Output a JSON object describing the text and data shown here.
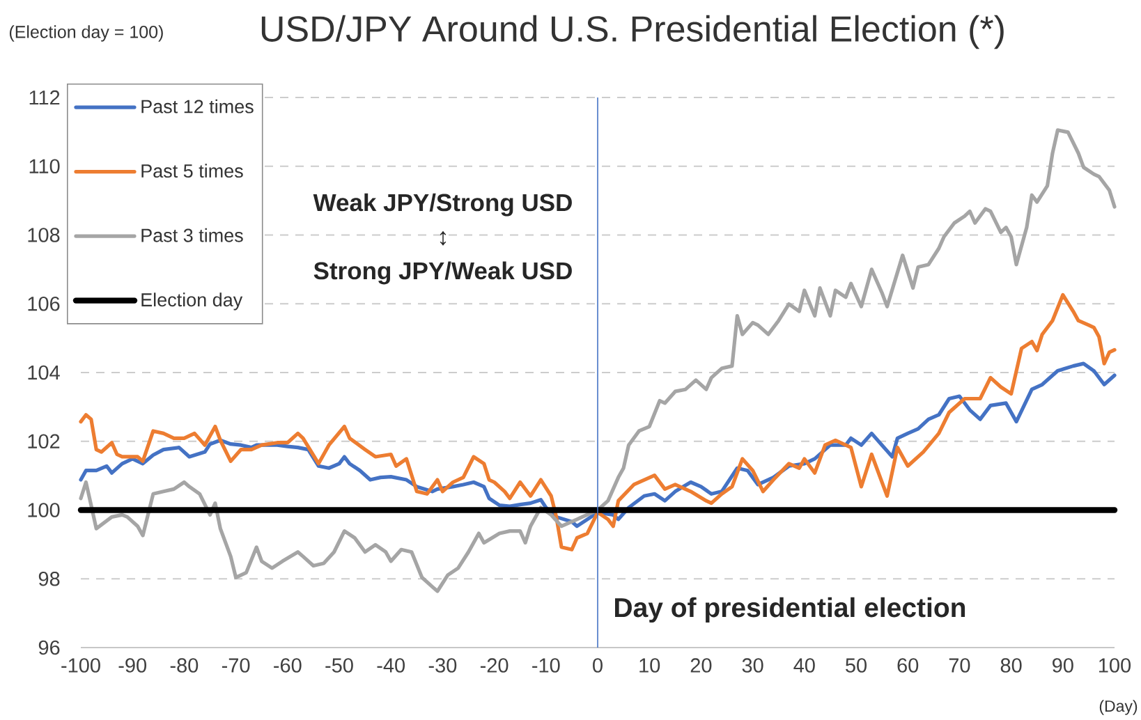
{
  "chart_data": {
    "type": "line",
    "title": "USD/JPY Around U.S. Presidential Election (*)",
    "ylabel": "(Election day = 100)",
    "xlabel": "(Day)",
    "xlim": [
      -100,
      100
    ],
    "xticks": [
      -100,
      -90,
      -80,
      -70,
      -60,
      -50,
      -40,
      -30,
      -20,
      -10,
      0,
      10,
      20,
      30,
      40,
      50,
      60,
      70,
      80,
      90,
      100
    ],
    "ylim": [
      96,
      112
    ],
    "yticks": [
      96,
      98,
      100,
      102,
      104,
      106,
      108,
      110,
      112
    ],
    "grid": "y",
    "legend": "top left",
    "annotations": [
      "Weak JPY/Strong USD",
      "↕",
      "Strong JPY/Weak USD"
    ],
    "ref_lines": [
      {
        "axis": "x",
        "value": 0,
        "label": "Day of presidential election",
        "color": "#4472c4"
      }
    ],
    "series": [
      {
        "name": "Past 12 times",
        "color": "#4472c4",
        "x": [
          -100,
          -99,
          -97,
          -95,
          -94,
          -92,
          -90,
          -88,
          -86,
          -84,
          -81,
          -79,
          -76,
          -75,
          -73,
          -71,
          -69,
          -67,
          -66,
          -62,
          -60,
          -58,
          -56,
          -54,
          -52,
          -50,
          -49,
          -48,
          -46,
          -44,
          -42,
          -40,
          -37,
          -35,
          -32,
          -31,
          -28,
          -26,
          -24,
          -22,
          -21,
          -19,
          -17,
          -15,
          -13,
          -11,
          -10,
          -8,
          -5,
          -4,
          -2,
          0,
          3,
          4,
          6,
          9,
          11,
          13,
          15,
          18,
          20,
          22,
          24,
          27,
          29,
          31,
          34,
          37,
          40,
          42,
          45,
          48,
          49,
          51,
          53,
          55,
          57,
          58,
          60,
          62,
          64,
          66,
          68,
          70,
          72,
          74,
          76,
          79,
          81,
          84,
          86,
          89,
          92,
          94,
          96,
          98,
          100
        ],
        "values": [
          100.88,
          101.15,
          101.15,
          101.28,
          101.08,
          101.35,
          101.49,
          101.35,
          101.6,
          101.76,
          101.82,
          101.55,
          101.69,
          101.92,
          102.03,
          101.92,
          101.89,
          101.82,
          101.89,
          101.89,
          101.85,
          101.82,
          101.76,
          101.28,
          101.22,
          101.35,
          101.55,
          101.35,
          101.15,
          100.88,
          100.95,
          100.97,
          100.88,
          100.68,
          100.54,
          100.61,
          100.68,
          100.74,
          100.81,
          100.68,
          100.34,
          100.14,
          100.11,
          100.16,
          100.2,
          100.3,
          100.07,
          99.8,
          99.66,
          99.53,
          99.73,
          99.93,
          99.86,
          99.73,
          100.07,
          100.41,
          100.47,
          100.27,
          100.54,
          100.81,
          100.68,
          100.47,
          100.54,
          101.22,
          101.15,
          100.74,
          100.95,
          101.28,
          101.35,
          101.49,
          101.89,
          101.89,
          102.09,
          101.89,
          102.23,
          101.89,
          101.55,
          102.09,
          102.23,
          102.36,
          102.64,
          102.77,
          103.24,
          103.31,
          102.91,
          102.64,
          103.04,
          103.11,
          102.57,
          103.51,
          103.65,
          104.05,
          104.19,
          104.26,
          104.05,
          103.65,
          103.92
        ]
      },
      {
        "name": "Past 5 times",
        "color": "#ed7d31",
        "x": [
          -100,
          -99,
          -98,
          -97,
          -96,
          -94,
          -93,
          -92,
          -89,
          -88,
          -86,
          -84,
          -82,
          -80,
          -78,
          -76,
          -74,
          -73,
          -71,
          -69,
          -67,
          -65,
          -62,
          -60,
          -58,
          -57,
          -54,
          -52,
          -49,
          -48,
          -45,
          -43,
          -40,
          -39,
          -37,
          -35,
          -33,
          -31,
          -30,
          -28,
          -26,
          -24,
          -22,
          -21,
          -20,
          -18,
          -17,
          -15,
          -13,
          -11,
          -9,
          -8,
          -7,
          -5,
          -4,
          -2,
          0,
          2,
          3,
          4,
          7,
          11,
          13,
          15,
          18,
          21,
          22,
          24,
          26,
          28,
          30,
          32,
          34,
          37,
          39,
          40,
          42,
          44,
          46,
          49,
          51,
          53,
          56,
          58,
          60,
          63,
          66,
          68,
          71,
          74,
          76,
          78,
          80,
          82,
          84,
          85,
          86,
          88,
          90,
          92,
          93,
          95,
          96,
          97,
          98,
          99,
          100
        ],
        "values": [
          102.57,
          102.77,
          102.64,
          101.76,
          101.69,
          101.96,
          101.62,
          101.55,
          101.55,
          101.42,
          102.3,
          102.23,
          102.09,
          102.09,
          102.23,
          101.89,
          102.43,
          102.03,
          101.42,
          101.76,
          101.76,
          101.89,
          101.96,
          101.96,
          102.23,
          102.09,
          101.35,
          101.89,
          102.43,
          102.09,
          101.76,
          101.55,
          101.62,
          101.28,
          101.49,
          100.54,
          100.47,
          100.88,
          100.54,
          100.81,
          100.95,
          101.55,
          101.35,
          100.88,
          100.81,
          100.54,
          100.34,
          100.81,
          100.41,
          100.88,
          100.41,
          99.8,
          98.92,
          98.85,
          99.19,
          99.32,
          99.93,
          99.73,
          99.53,
          100.27,
          100.74,
          101.01,
          100.61,
          100.74,
          100.54,
          100.27,
          100.2,
          100.47,
          100.68,
          101.49,
          101.15,
          100.54,
          100.88,
          101.35,
          101.22,
          101.49,
          101.08,
          101.89,
          102.03,
          101.82,
          100.68,
          101.62,
          100.41,
          101.82,
          101.28,
          101.69,
          102.23,
          102.84,
          103.24,
          103.24,
          103.85,
          103.58,
          103.38,
          104.7,
          104.9,
          104.64,
          105.11,
          105.51,
          106.26,
          105.78,
          105.51,
          105.38,
          105.31,
          105.04,
          104.26,
          104.59,
          104.66
        ]
      },
      {
        "name": "Past 3 times",
        "color": "#a5a5a5",
        "x": [
          -100,
          -99,
          -98,
          -97,
          -94,
          -92,
          -91,
          -89,
          -88,
          -86,
          -84,
          -82,
          -80,
          -79,
          -77,
          -75,
          -74,
          -73,
          -71,
          -70,
          -68,
          -66,
          -65,
          -63,
          -61,
          -58,
          -57,
          -55,
          -53,
          -51,
          -49,
          -47,
          -45,
          -43,
          -41,
          -40,
          -38,
          -36,
          -34,
          -32,
          -31,
          -29,
          -27,
          -25,
          -23,
          -22,
          -19,
          -17,
          -15,
          -14,
          -13,
          -11,
          -9,
          -7,
          -4,
          -3,
          0,
          2,
          4,
          5,
          6,
          8,
          10,
          12,
          13,
          15,
          17,
          19,
          21,
          22,
          24,
          26,
          27,
          28,
          30,
          31,
          33,
          35,
          37,
          39,
          40,
          42,
          43,
          45,
          46,
          48,
          49,
          51,
          53,
          55,
          56,
          59,
          61,
          62,
          64,
          66,
          67,
          69,
          71,
          72,
          73,
          75,
          76,
          78,
          79,
          80,
          81,
          83,
          84,
          85,
          87,
          88,
          89,
          91,
          93,
          94,
          96,
          97,
          99,
          100
        ],
        "values": [
          100.34,
          100.81,
          100.14,
          99.46,
          99.8,
          99.86,
          99.8,
          99.53,
          99.26,
          100.47,
          100.54,
          100.61,
          100.81,
          100.68,
          100.47,
          99.86,
          100.2,
          99.46,
          98.65,
          98.04,
          98.18,
          98.92,
          98.51,
          98.31,
          98.51,
          98.78,
          98.65,
          98.38,
          98.45,
          98.78,
          99.39,
          99.19,
          98.78,
          98.99,
          98.78,
          98.51,
          98.85,
          98.78,
          98.04,
          97.77,
          97.64,
          98.11,
          98.31,
          98.78,
          99.32,
          99.05,
          99.32,
          99.39,
          99.39,
          99.05,
          99.53,
          100.07,
          99.86,
          99.53,
          99.73,
          99.8,
          100,
          100.27,
          100.95,
          101.22,
          101.89,
          102.3,
          102.43,
          103.18,
          103.11,
          103.45,
          103.51,
          103.78,
          103.51,
          103.85,
          104.12,
          104.19,
          105.65,
          105.11,
          105.45,
          105.38,
          105.11,
          105.51,
          105.99,
          105.78,
          106.39,
          105.65,
          106.46,
          105.65,
          106.39,
          106.19,
          106.59,
          105.92,
          107.0,
          106.32,
          105.92,
          107.41,
          106.46,
          107.07,
          107.14,
          107.61,
          107.95,
          108.35,
          108.55,
          108.69,
          108.35,
          108.76,
          108.69,
          108.08,
          108.22,
          107.95,
          107.14,
          108.22,
          109.16,
          108.96,
          109.43,
          110.38,
          111.05,
          110.99,
          110.38,
          109.97,
          109.77,
          109.7,
          109.3,
          108.82
        ]
      },
      {
        "name": "Election day",
        "color": "#000000",
        "x": [
          -100,
          100
        ],
        "values": [
          100,
          100
        ]
      }
    ]
  }
}
